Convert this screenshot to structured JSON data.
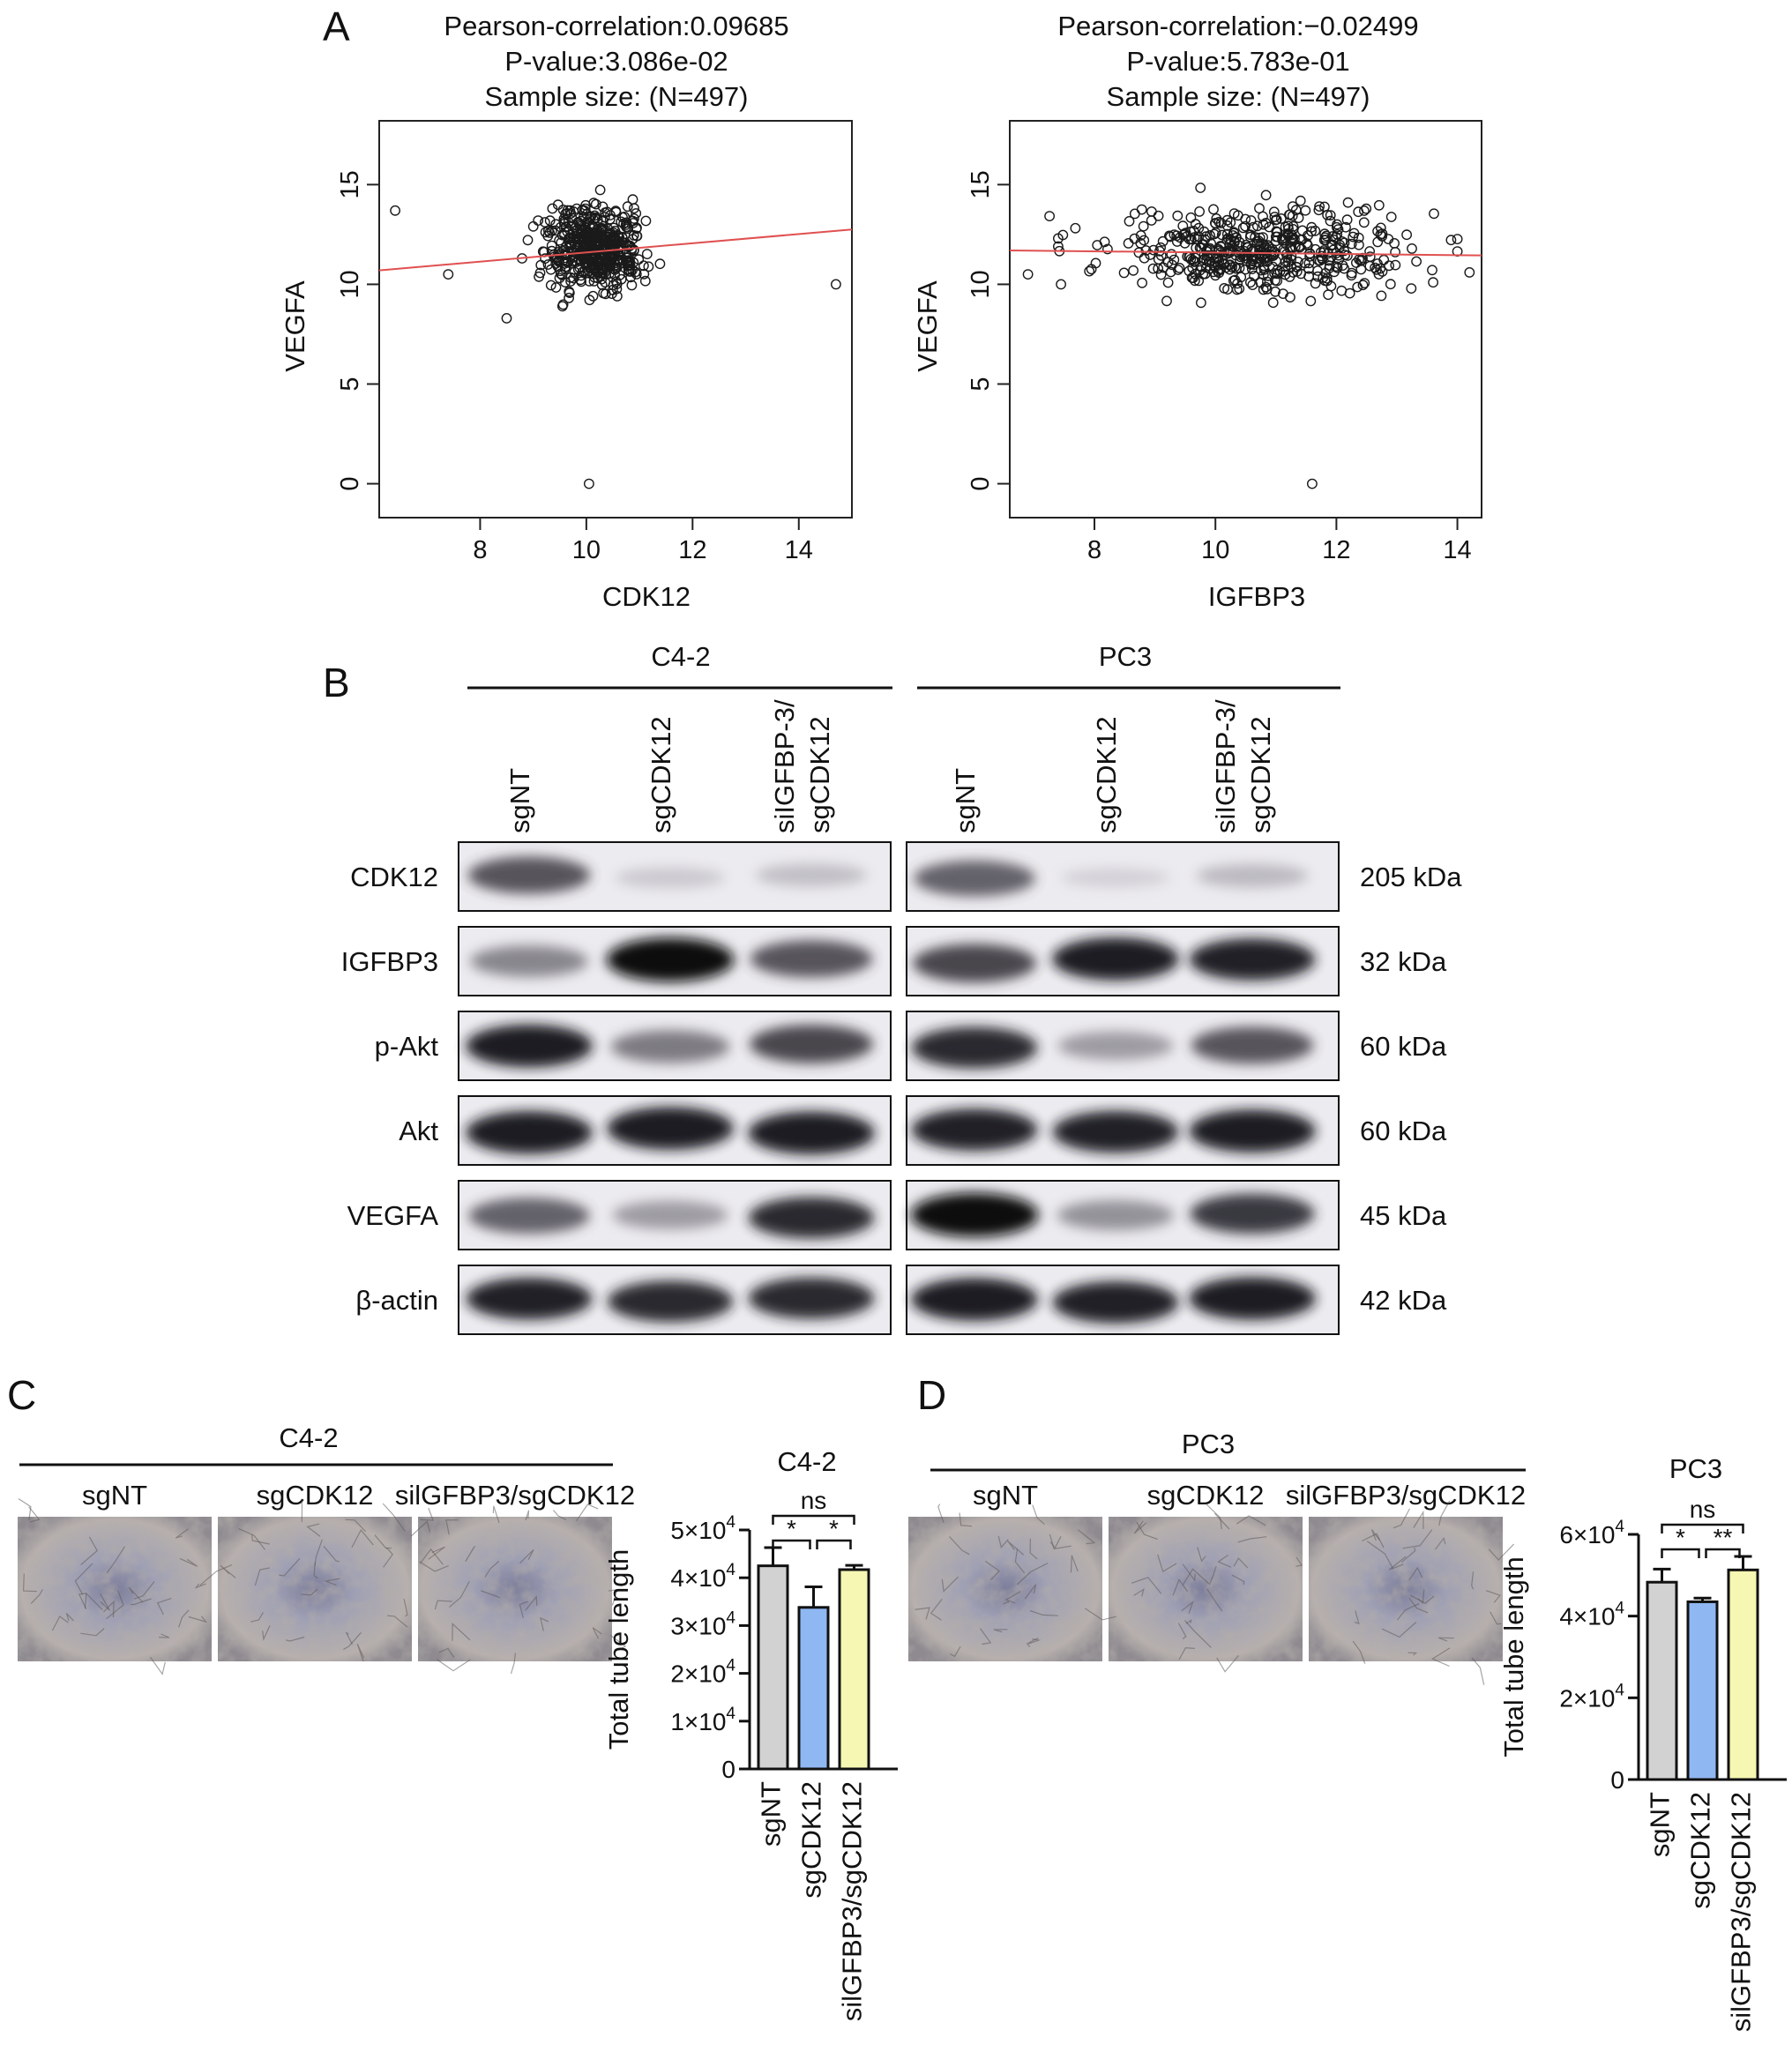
{
  "panels": {
    "A": "A",
    "B": "B",
    "C": "C",
    "D": "D"
  },
  "scatter": [
    {
      "key": "cdk12",
      "title_lines": [
        "Pearson-correlation:0.09685",
        "P-value:3.086e-02",
        "Sample size: (N=497)"
      ],
      "chart_data": {
        "type": "scatter",
        "xlabel": "CDK12",
        "ylabel": "VEGFA",
        "xlim": [
          6.1,
          15.0
        ],
        "ylim": [
          -1.7,
          18.2
        ],
        "xticks": [
          8,
          10,
          12,
          14
        ],
        "yticks": [
          0,
          5,
          10,
          15
        ],
        "n": 497,
        "center": [
          10.15,
          11.8
        ],
        "spread": [
          0.45,
          1.0
        ],
        "outliers": [
          [
            6.4,
            13.7
          ],
          [
            7.4,
            10.5
          ],
          [
            14.7,
            10.0
          ],
          [
            10.05,
            0.0
          ],
          [
            8.5,
            8.3
          ],
          [
            9.0,
            12.9
          ]
        ],
        "fit": {
          "x1": 6.1,
          "y1": 10.7,
          "x2": 15.0,
          "y2": 12.75,
          "color": "#e05050"
        },
        "point_color": "#1a1a1a"
      }
    },
    {
      "key": "igfbp3",
      "title_lines": [
        "Pearson-correlation:−0.02499",
        "P-value:5.783e-01",
        "Sample size: (N=497)"
      ],
      "chart_data": {
        "type": "scatter",
        "xlabel": "IGFBP3",
        "ylabel": "VEGFA",
        "xlim": [
          6.6,
          14.4
        ],
        "ylim": [
          -1.7,
          18.2
        ],
        "xticks": [
          8,
          10,
          12,
          14
        ],
        "yticks": [
          0,
          5,
          10,
          15
        ],
        "n": 497,
        "center": [
          10.8,
          11.6
        ],
        "spread": [
          1.2,
          1.0
        ],
        "outliers": [
          [
            6.9,
            10.5
          ],
          [
            7.4,
            12.3
          ],
          [
            7.4,
            11.9
          ],
          [
            14.2,
            10.6
          ],
          [
            13.6,
            10.1
          ],
          [
            11.6,
            0.0
          ]
        ],
        "fit": {
          "x1": 6.6,
          "y1": 11.7,
          "x2": 14.4,
          "y2": 11.45,
          "color": "#e05050"
        },
        "point_color": "#1a1a1a"
      }
    }
  ],
  "western": {
    "groups": [
      "C4-2",
      "PC3"
    ],
    "lanes": [
      "sgNT",
      "sgCDK12",
      "siIGFBP-3/\nsgCDK12"
    ],
    "rows": [
      {
        "label": "CDK12",
        "kda": "205 kDa",
        "c42": [
          0.75,
          0.18,
          0.25
        ],
        "pc3": [
          0.7,
          0.12,
          0.28
        ]
      },
      {
        "label": "IGFBP3",
        "kda": "32 kDa",
        "c42": [
          0.55,
          1.0,
          0.75
        ],
        "pc3": [
          0.8,
          0.95,
          0.92
        ]
      },
      {
        "label": "p-Akt",
        "kda": "60 kDa",
        "c42": [
          0.95,
          0.6,
          0.8
        ],
        "pc3": [
          0.9,
          0.45,
          0.75
        ]
      },
      {
        "label": "Akt",
        "kda": "60 kDa",
        "c42": [
          0.95,
          0.95,
          0.95
        ],
        "pc3": [
          0.92,
          0.92,
          0.95
        ]
      },
      {
        "label": "VEGFA",
        "kda": "45 kDa",
        "c42": [
          0.7,
          0.45,
          0.9
        ],
        "pc3": [
          1.0,
          0.5,
          0.85
        ]
      },
      {
        "label": "β-actin",
        "kda": "42 kDa",
        "c42": [
          0.92,
          0.9,
          0.9
        ],
        "pc3": [
          0.95,
          0.92,
          0.95
        ]
      }
    ]
  },
  "tube_panels": [
    {
      "key": "c42",
      "group": "C4-2",
      "images": [
        "sgNT",
        "sgCDK12",
        "silGFBP3/sgCDK12"
      ],
      "chart_data": {
        "type": "bar",
        "title": "C4-2",
        "ylabel": "Total tube length",
        "categories": [
          "sgNT",
          "sgCDK12",
          "silGFBP3/sgCDK12"
        ],
        "values": [
          42500,
          33800,
          41700
        ],
        "errors": [
          3800,
          4300,
          900
        ],
        "ylim": [
          0,
          50000
        ],
        "yticks": [
          0,
          10000,
          20000,
          30000,
          40000,
          50000
        ],
        "ytick_labels": [
          {
            "m": "0",
            "e": ""
          },
          {
            "m": "1×10",
            "e": "4"
          },
          {
            "m": "2×10",
            "e": "4"
          },
          {
            "m": "3×10",
            "e": "4"
          },
          {
            "m": "4×10",
            "e": "4"
          },
          {
            "m": "5×10",
            "e": "4"
          }
        ],
        "colors": [
          "#d2d2d2",
          "#8fb7f2",
          "#f5f7b2"
        ],
        "significance": [
          {
            "from": 0,
            "to": 2,
            "label": "ns"
          },
          {
            "from": 0,
            "to": 1,
            "label": "*"
          },
          {
            "from": 1,
            "to": 2,
            "label": "*"
          }
        ]
      }
    },
    {
      "key": "pc3",
      "group": "PC3",
      "images": [
        "sgNT",
        "sgCDK12",
        "silGFBP3/sgCDK12"
      ],
      "chart_data": {
        "type": "bar",
        "title": "PC3",
        "ylabel": "Total tube length",
        "categories": [
          "sgNT",
          "sgCDK12",
          "silGFBP3/sgCDK12"
        ],
        "values": [
          48300,
          43500,
          51300
        ],
        "errors": [
          3200,
          900,
          3300
        ],
        "ylim": [
          0,
          60000
        ],
        "yticks": [
          0,
          20000,
          40000,
          60000
        ],
        "ytick_labels": [
          {
            "m": "0",
            "e": ""
          },
          {
            "m": "2×10",
            "e": "4"
          },
          {
            "m": "4×10",
            "e": "4"
          },
          {
            "m": "6×10",
            "e": "4"
          }
        ],
        "colors": [
          "#d2d2d2",
          "#8fb7f2",
          "#f5f7b2"
        ],
        "significance": [
          {
            "from": 0,
            "to": 2,
            "label": "ns"
          },
          {
            "from": 0,
            "to": 1,
            "label": "*"
          },
          {
            "from": 1,
            "to": 2,
            "label": "**"
          }
        ]
      }
    }
  ]
}
